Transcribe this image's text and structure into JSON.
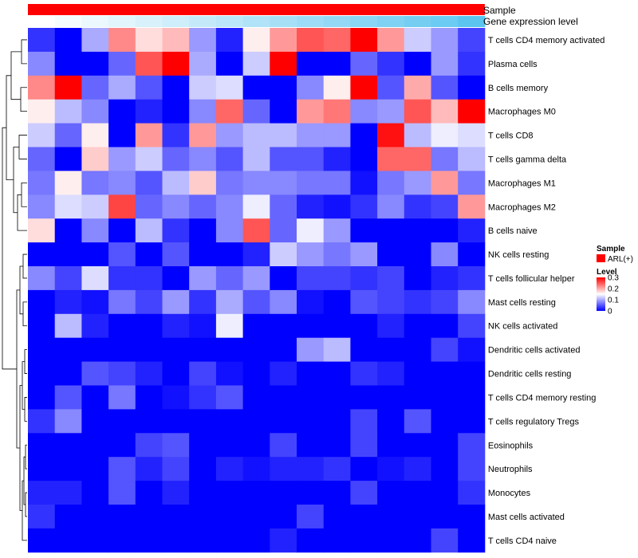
{
  "chart_data": {
    "type": "heatmap",
    "title": "",
    "annotations": {
      "sample": {
        "label": "Sample",
        "value": "ARL(+)",
        "color": "#ff0000"
      },
      "expression": {
        "label": "Gene expression level",
        "values": [
          0.0,
          0.06,
          0.12,
          0.18,
          0.24,
          0.3,
          0.36,
          0.42,
          0.48,
          0.54,
          0.6,
          0.66,
          0.72,
          0.78,
          0.84,
          0.9,
          1.0
        ],
        "color_low": "#ffffff",
        "color_high": "#5bc5f0"
      }
    },
    "rows": [
      "T cells CD4 memory activated",
      "Plasma cells",
      "B cells memory",
      "Macrophages M0",
      "T cells CD8",
      "T cells gamma delta",
      "Macrophages M1",
      "Macrophages M2",
      "B cells naive",
      "NK cells resting",
      "T cells follicular helper",
      "Mast cells resting",
      "NK cells activated",
      "Dendritic cells activated",
      "Dendritic cells resting",
      "T cells CD4 memory resting",
      "T cells regulatory  Tregs",
      "Eosinophils",
      "Neutrophils",
      "Monocytes",
      "Mast cells activated",
      "T cells CD4 naive"
    ],
    "n_columns": 17,
    "values": [
      [
        0.03,
        0.0,
        0.1,
        0.22,
        0.17,
        0.19,
        0.09,
        0.02,
        0.16,
        0.21,
        0.25,
        0.24,
        0.3,
        0.21,
        0.12,
        0.09,
        0.04
      ],
      [
        0.08,
        0.0,
        0.0,
        0.06,
        0.25,
        0.3,
        0.1,
        0.0,
        0.12,
        0.3,
        0.0,
        0.0,
        0.06,
        0.03,
        0.0,
        0.09,
        0.03
      ],
      [
        0.22,
        0.3,
        0.06,
        0.1,
        0.05,
        0.0,
        0.12,
        0.13,
        0.0,
        0.0,
        0.08,
        0.16,
        0.3,
        0.05,
        0.2,
        0.05,
        0.0
      ],
      [
        0.16,
        0.11,
        0.08,
        0.0,
        0.02,
        0.0,
        0.08,
        0.24,
        0.06,
        0.0,
        0.21,
        0.23,
        0.08,
        0.09,
        0.25,
        0.19,
        0.3
      ],
      [
        0.12,
        0.06,
        0.16,
        0.0,
        0.21,
        0.03,
        0.21,
        0.09,
        0.11,
        0.11,
        0.09,
        0.09,
        0.0,
        0.29,
        0.11,
        0.14,
        0.13
      ],
      [
        0.06,
        0.0,
        0.18,
        0.09,
        0.12,
        0.06,
        0.08,
        0.05,
        0.11,
        0.05,
        0.05,
        0.02,
        0.0,
        0.24,
        0.24,
        0.07,
        0.11
      ],
      [
        0.07,
        0.16,
        0.07,
        0.08,
        0.05,
        0.11,
        0.18,
        0.07,
        0.08,
        0.08,
        0.07,
        0.07,
        0.01,
        0.07,
        0.09,
        0.21,
        0.07
      ],
      [
        0.08,
        0.13,
        0.12,
        0.26,
        0.06,
        0.08,
        0.06,
        0.08,
        0.14,
        0.06,
        0.02,
        0.01,
        0.03,
        0.08,
        0.03,
        0.04,
        0.21
      ],
      [
        0.17,
        0.0,
        0.08,
        0.0,
        0.11,
        0.03,
        0.0,
        0.08,
        0.25,
        0.06,
        0.14,
        0.09,
        0.0,
        0.0,
        0.0,
        0.0,
        0.02
      ],
      [
        0.0,
        0.0,
        0.0,
        0.05,
        0.0,
        0.05,
        0.0,
        0.0,
        0.02,
        0.12,
        0.09,
        0.07,
        0.09,
        0.0,
        0.0,
        0.08,
        0.0
      ],
      [
        0.08,
        0.04,
        0.13,
        0.03,
        0.03,
        0.0,
        0.09,
        0.06,
        0.09,
        0.0,
        0.04,
        0.04,
        0.03,
        0.04,
        0.0,
        0.02,
        0.03
      ],
      [
        0.0,
        0.02,
        0.01,
        0.07,
        0.04,
        0.09,
        0.03,
        0.1,
        0.05,
        0.08,
        0.01,
        0.0,
        0.05,
        0.04,
        0.03,
        0.04,
        0.08
      ],
      [
        0.0,
        0.11,
        0.02,
        0.0,
        0.0,
        0.02,
        0.01,
        0.14,
        0.0,
        0.0,
        0.0,
        0.0,
        0.0,
        0.02,
        0.0,
        0.0,
        0.04
      ],
      [
        0.0,
        0.0,
        0.0,
        0.0,
        0.0,
        0.0,
        0.0,
        0.0,
        0.0,
        0.0,
        0.09,
        0.11,
        0.0,
        0.0,
        0.0,
        0.04,
        0.01
      ],
      [
        0.0,
        0.0,
        0.05,
        0.04,
        0.02,
        0.0,
        0.04,
        0.01,
        0.0,
        0.02,
        0.0,
        0.0,
        0.03,
        0.02,
        0.0,
        0.0,
        0.0
      ],
      [
        0.0,
        0.05,
        0.0,
        0.07,
        0.0,
        0.01,
        0.03,
        0.05,
        0.0,
        0.0,
        0.0,
        0.0,
        0.0,
        0.0,
        0.0,
        0.0,
        0.0
      ],
      [
        0.03,
        0.08,
        0.0,
        0.0,
        0.0,
        0.0,
        0.0,
        0.0,
        0.0,
        0.0,
        0.0,
        0.0,
        0.04,
        0.0,
        0.05,
        0.0,
        0.0
      ],
      [
        0.0,
        0.0,
        0.0,
        0.0,
        0.04,
        0.05,
        0.0,
        0.0,
        0.0,
        0.04,
        0.0,
        0.0,
        0.04,
        0.0,
        0.0,
        0.0,
        0.04
      ],
      [
        0.0,
        0.0,
        0.0,
        0.05,
        0.02,
        0.04,
        0.0,
        0.02,
        0.01,
        0.02,
        0.02,
        0.03,
        0.0,
        0.01,
        0.02,
        0.0,
        0.04
      ],
      [
        0.02,
        0.02,
        0.0,
        0.05,
        0.0,
        0.02,
        0.0,
        0.0,
        0.0,
        0.0,
        0.0,
        0.0,
        0.04,
        0.0,
        0.0,
        0.0,
        0.03
      ],
      [
        0.03,
        0.0,
        0.0,
        0.0,
        0.0,
        0.0,
        0.0,
        0.0,
        0.0,
        0.0,
        0.04,
        0.0,
        0.0,
        0.0,
        0.0,
        0.0,
        0.0
      ],
      [
        0.0,
        0.0,
        0.0,
        0.0,
        0.0,
        0.0,
        0.0,
        0.0,
        0.0,
        0.02,
        0.0,
        0.0,
        0.0,
        0.0,
        0.0,
        0.04,
        0.0
      ]
    ],
    "scale": {
      "min": 0,
      "mid": 0.15,
      "max": 0.3,
      "low": "#0000ff",
      "mid_color": "#ffffff",
      "high": "#ff0000"
    },
    "legend": {
      "placement": "right",
      "sample_title": "Sample",
      "sample_entry": "ARL(+)",
      "level_title": "Level",
      "ticks": [
        "0.3",
        "0.2",
        "0.1",
        "0"
      ],
      "tick_values": [
        0.3,
        0.2,
        0.1,
        0
      ]
    },
    "dendrogram": "row clustering tree on left"
  }
}
